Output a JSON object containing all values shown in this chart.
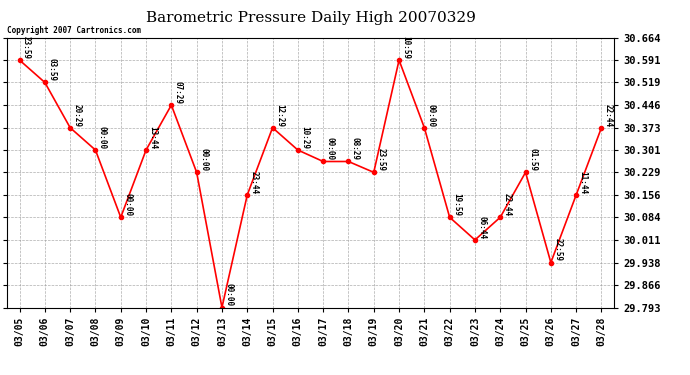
{
  "title": "Barometric Pressure Daily High 20070329",
  "copyright": "Copyright 2007 Cartronics.com",
  "dates": [
    "03/05",
    "03/06",
    "03/07",
    "03/08",
    "03/09",
    "03/10",
    "03/11",
    "03/12",
    "03/13",
    "03/14",
    "03/15",
    "03/16",
    "03/17",
    "03/18",
    "03/19",
    "03/20",
    "03/21",
    "03/22",
    "03/23",
    "03/24",
    "03/25",
    "03/26",
    "03/27",
    "03/28"
  ],
  "values": [
    30.591,
    30.519,
    30.373,
    30.301,
    30.084,
    30.301,
    30.446,
    30.229,
    29.793,
    30.156,
    30.373,
    30.301,
    30.264,
    30.264,
    30.229,
    30.591,
    30.373,
    30.084,
    30.011,
    30.084,
    30.229,
    29.938,
    30.156,
    30.373
  ],
  "time_labels": [
    "23:59",
    "03:59",
    "20:29",
    "00:00",
    "00:00",
    "13:44",
    "07:29",
    "00:00",
    "00:00",
    "23:44",
    "12:29",
    "10:29",
    "00:00",
    "08:29",
    "23:59",
    "10:59",
    "00:00",
    "19:59",
    "06:44",
    "22:44",
    "01:59",
    "22:59",
    "11:44",
    "22:44"
  ],
  "ylim": [
    29.793,
    30.664
  ],
  "yticks": [
    29.793,
    29.866,
    29.938,
    30.011,
    30.084,
    30.156,
    30.229,
    30.301,
    30.373,
    30.446,
    30.519,
    30.591,
    30.664
  ],
  "line_color": "#ff0000",
  "marker_color": "#ff0000",
  "bg_color": "#ffffff",
  "grid_color": "#999999",
  "title_fontsize": 11,
  "annot_fontsize": 5.5,
  "tick_fontsize": 7,
  "ytick_fontsize": 7.5
}
